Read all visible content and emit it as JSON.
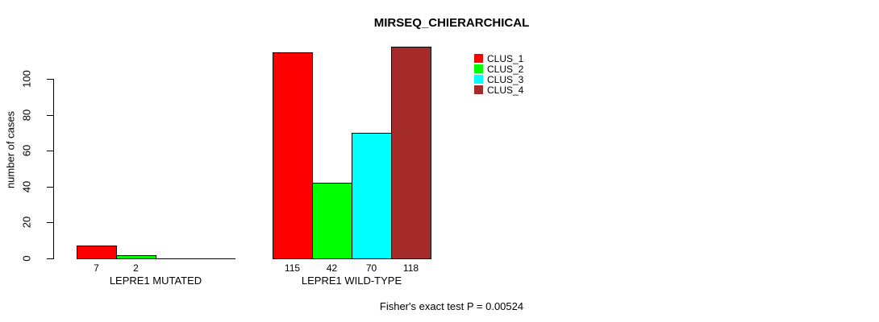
{
  "chart_data": {
    "type": "bar",
    "title": "MIRSEQ_CHIERARCHICAL",
    "ylabel": "number of cases",
    "xlabel": "",
    "ylim": [
      0,
      100
    ],
    "yticks": [
      0,
      20,
      40,
      60,
      80,
      100
    ],
    "grid": false,
    "legend_position": "top-right-inside",
    "bar_border_color": "#000000",
    "series": [
      {
        "name": "CLUS_1",
        "color": "#FF0000"
      },
      {
        "name": "CLUS_2",
        "color": "#00FF00"
      },
      {
        "name": "CLUS_3",
        "color": "#00FFFF"
      },
      {
        "name": "CLUS_4",
        "color": "#A52A2A"
      }
    ],
    "categories": [
      "LEPRE1 MUTATED",
      "LEPRE1 WILD-TYPE"
    ],
    "groups": [
      {
        "label": "LEPRE1 MUTATED",
        "values": [
          7,
          2,
          0,
          0
        ],
        "bar_labels": [
          "7",
          "2",
          "",
          ""
        ]
      },
      {
        "label": "LEPRE1 WILD-TYPE",
        "values": [
          115,
          42,
          70,
          118
        ],
        "bar_labels": [
          "115",
          "42",
          "70",
          "118"
        ]
      }
    ],
    "footnote": "Fisher's exact test P = 0.00524"
  }
}
